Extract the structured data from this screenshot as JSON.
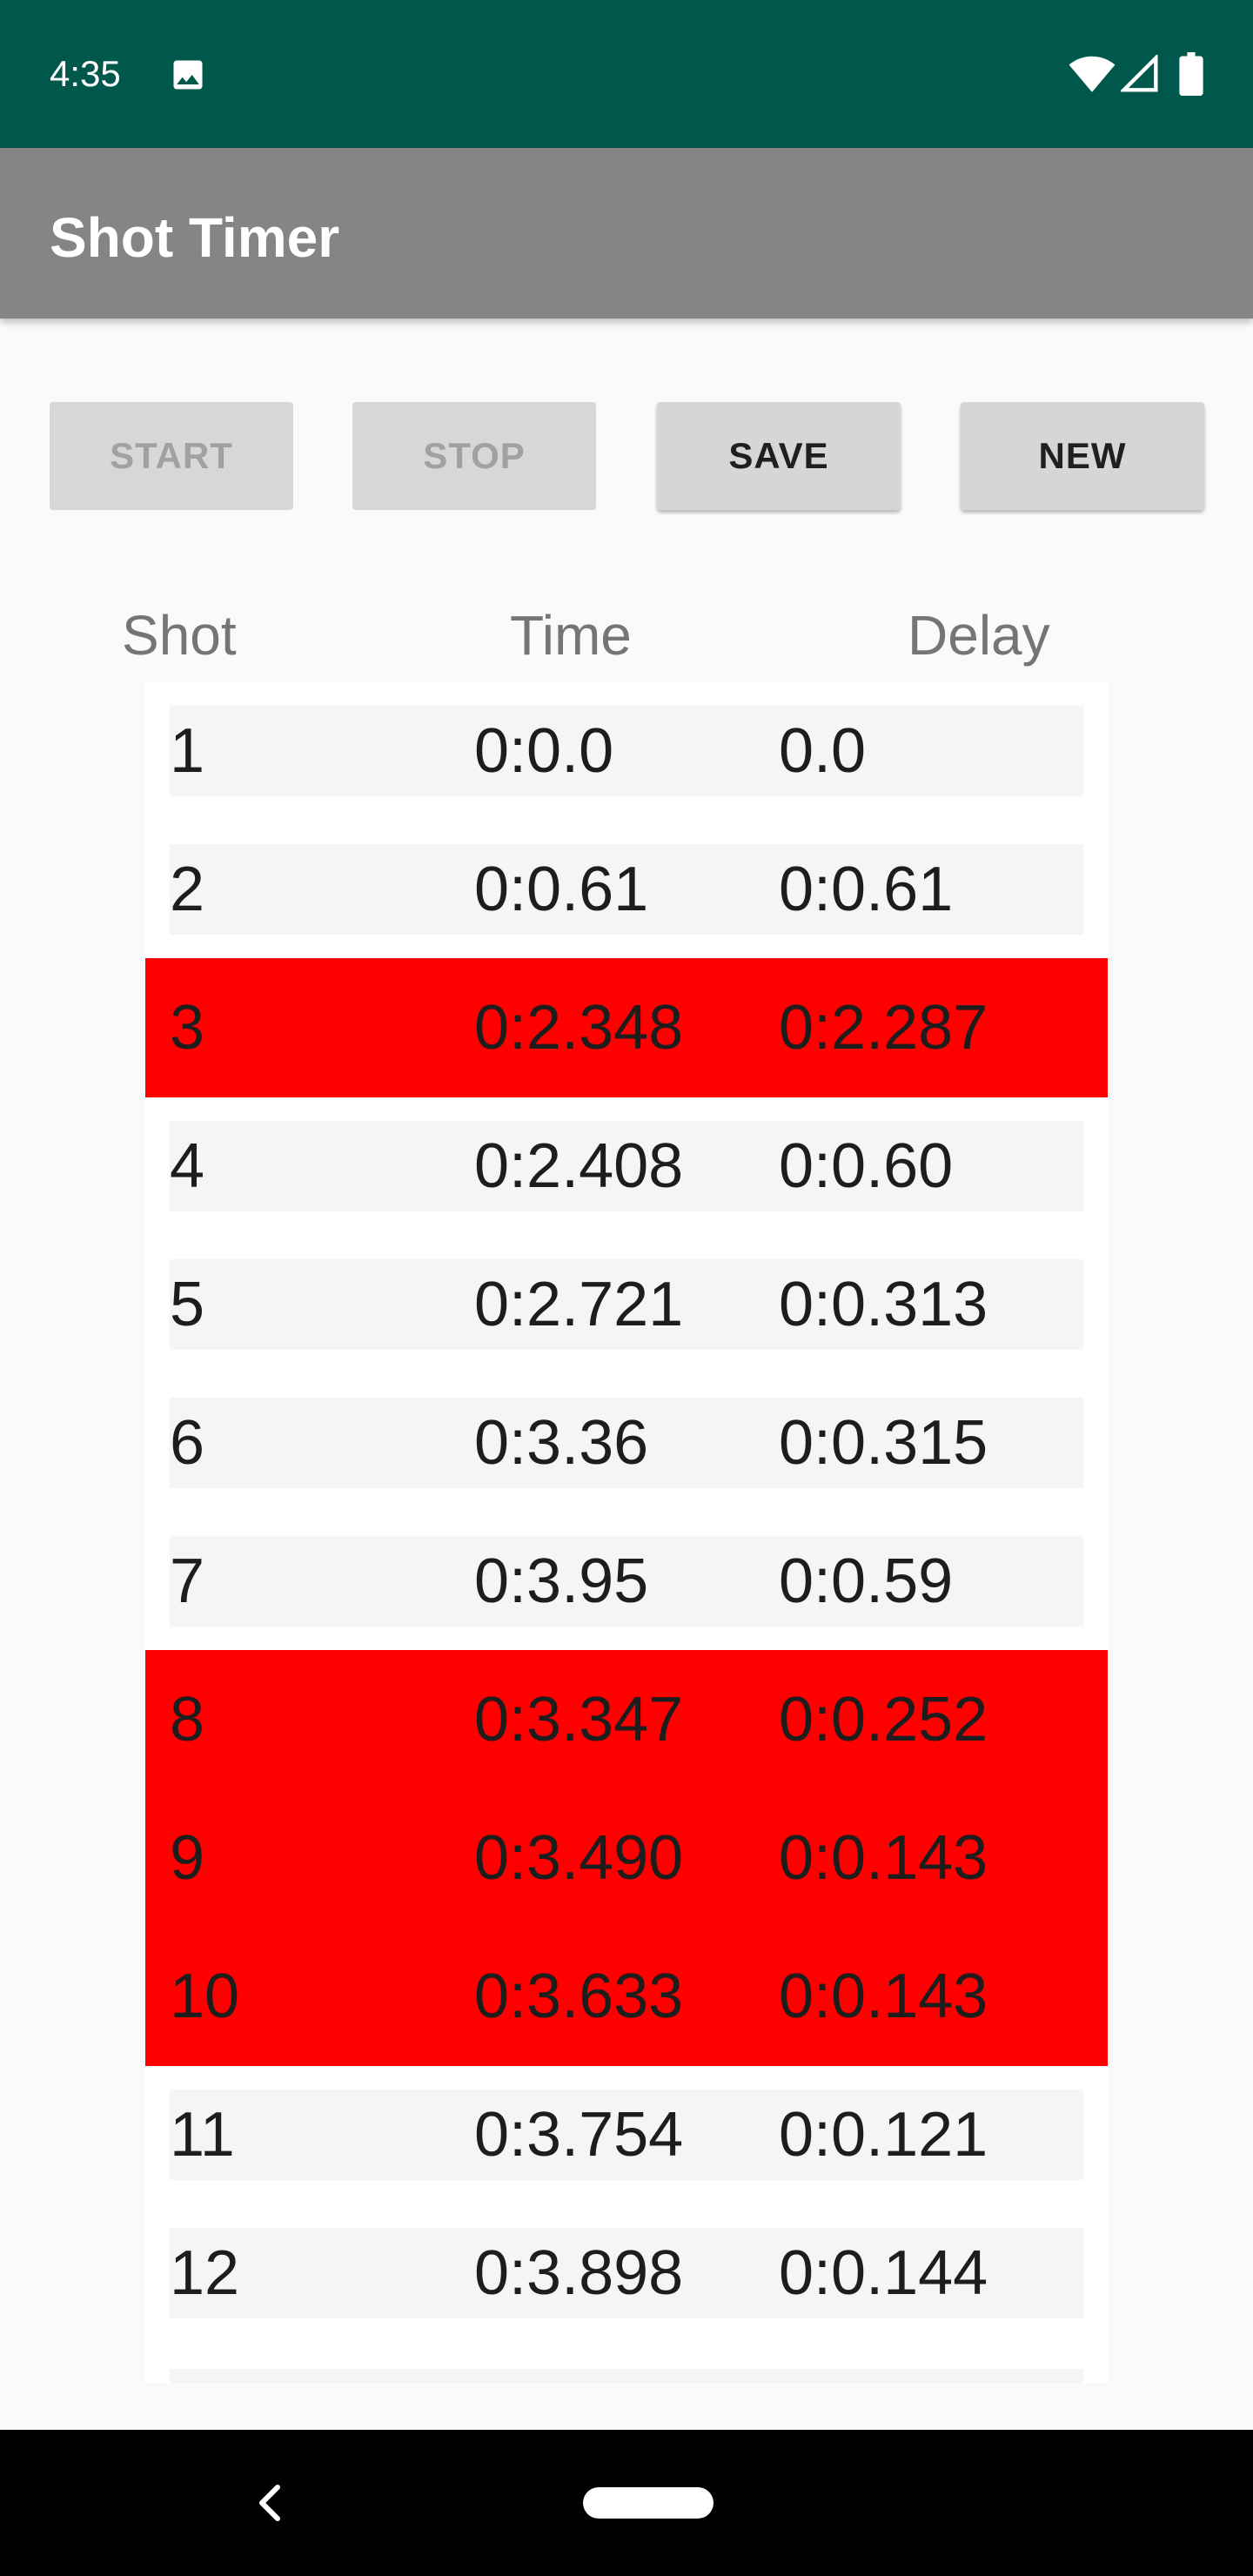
{
  "status_bar": {
    "time": "4:35",
    "icons": [
      "image-icon",
      "wifi-icon",
      "signal-icon",
      "battery-icon"
    ],
    "background_color": "#00574b"
  },
  "app_bar": {
    "title": "Shot Timer",
    "background_color": "#858585"
  },
  "toolbar": {
    "start_label": "START",
    "stop_label": "STOP",
    "save_label": "SAVE",
    "new_label": "NEW",
    "disabled": [
      "START",
      "STOP"
    ]
  },
  "table": {
    "headers": {
      "shot": "Shot",
      "time": "Time",
      "delay": "Delay"
    },
    "highlight_color": "#ff0000",
    "rows": [
      {
        "shot": "1",
        "time": "0:0.0",
        "delay": "0.0",
        "highlighted": false
      },
      {
        "shot": "2",
        "time": "0:0.61",
        "delay": "0:0.61",
        "highlighted": false
      },
      {
        "shot": "3",
        "time": "0:2.348",
        "delay": "0:2.287",
        "highlighted": true
      },
      {
        "shot": "4",
        "time": "0:2.408",
        "delay": "0:0.60",
        "highlighted": false
      },
      {
        "shot": "5",
        "time": "0:2.721",
        "delay": "0:0.313",
        "highlighted": false
      },
      {
        "shot": "6",
        "time": "0:3.36",
        "delay": "0:0.315",
        "highlighted": false
      },
      {
        "shot": "7",
        "time": "0:3.95",
        "delay": "0:0.59",
        "highlighted": false
      },
      {
        "shot": "8",
        "time": "0:3.347",
        "delay": "0:0.252",
        "highlighted": true
      },
      {
        "shot": "9",
        "time": "0:3.490",
        "delay": "0:0.143",
        "highlighted": true
      },
      {
        "shot": "10",
        "time": "0:3.633",
        "delay": "0:0.143",
        "highlighted": true
      },
      {
        "shot": "11",
        "time": "0:3.754",
        "delay": "0:0.121",
        "highlighted": false
      },
      {
        "shot": "12",
        "time": "0:3.898",
        "delay": "0:0.144",
        "highlighted": false
      }
    ]
  },
  "nav_bar": {
    "icons": [
      "back-icon",
      "home-pill"
    ]
  }
}
